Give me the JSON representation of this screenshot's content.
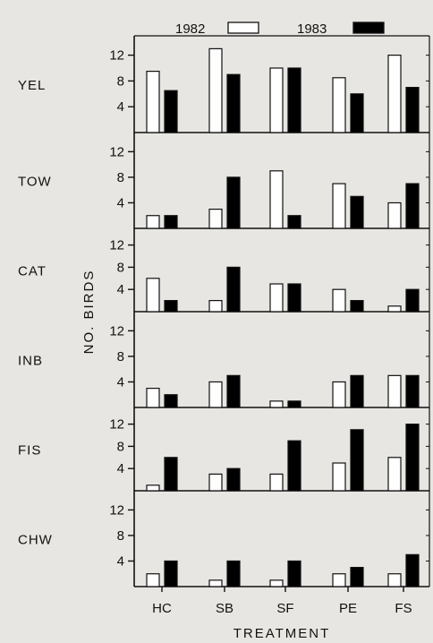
{
  "chart_data": {
    "type": "bar",
    "categories": [
      "HC",
      "SB",
      "SF",
      "PE",
      "FS"
    ],
    "xlabel": "TREATMENT",
    "ylabel": "NO. BIRDS",
    "legend": [
      {
        "name": "1982",
        "fill": "#ffffff"
      },
      {
        "name": "1983",
        "fill": "#000000"
      }
    ],
    "legend_placement": "top",
    "yticks": [
      4,
      8,
      12
    ],
    "ylim": [
      0,
      15
    ],
    "grid": false,
    "panels": [
      {
        "label": "YEL",
        "series": [
          {
            "name": "1982",
            "values": [
              9.5,
              13,
              10,
              8.5,
              12
            ]
          },
          {
            "name": "1983",
            "values": [
              6.5,
              9,
              10,
              6,
              7
            ]
          }
        ]
      },
      {
        "label": "TOW",
        "series": [
          {
            "name": "1982",
            "values": [
              2,
              3,
              9,
              7,
              4
            ]
          },
          {
            "name": "1983",
            "values": [
              2,
              8,
              2,
              5,
              7
            ]
          }
        ]
      },
      {
        "label": "CAT",
        "series": [
          {
            "name": "1982",
            "values": [
              6,
              2,
              5,
              4,
              1
            ]
          },
          {
            "name": "1983",
            "values": [
              2,
              8,
              5,
              2,
              4
            ]
          }
        ]
      },
      {
        "label": "INB",
        "series": [
          {
            "name": "1982",
            "values": [
              3,
              4,
              1,
              4,
              5
            ]
          },
          {
            "name": "1983",
            "values": [
              2,
              5,
              1,
              5,
              5
            ]
          }
        ]
      },
      {
        "label": "FIS",
        "series": [
          {
            "name": "1982",
            "values": [
              1,
              3,
              3,
              5,
              6
            ]
          },
          {
            "name": "1983",
            "values": [
              6,
              4,
              9,
              11,
              12
            ]
          }
        ]
      },
      {
        "label": "CHW",
        "series": [
          {
            "name": "1982",
            "values": [
              2,
              1,
              1,
              2,
              2
            ]
          },
          {
            "name": "1983",
            "values": [
              4,
              4,
              4,
              3,
              5
            ]
          }
        ]
      }
    ]
  }
}
